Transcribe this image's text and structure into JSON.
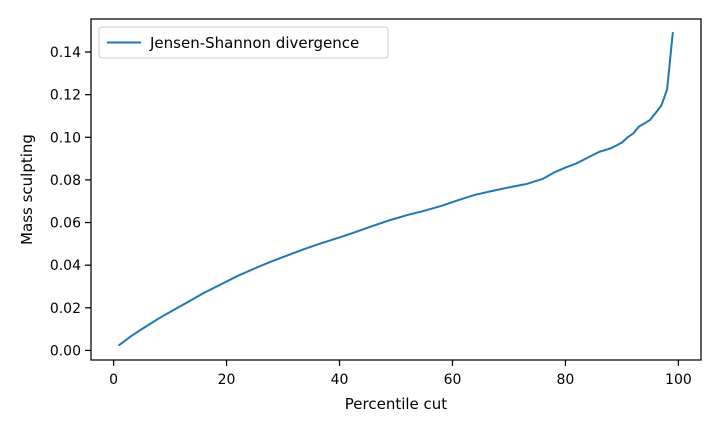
{
  "chart_data": {
    "type": "line",
    "title": "",
    "xlabel": "Percentile cut",
    "ylabel": "Mass sculpting",
    "xlim": [
      -4.0,
      104.0
    ],
    "ylim": [
      -0.0045,
      0.1555
    ],
    "xticks": [
      0,
      20,
      40,
      60,
      80,
      100
    ],
    "xtick_labels": [
      "0",
      "20",
      "40",
      "60",
      "80",
      "100"
    ],
    "yticks": [
      0.0,
      0.02,
      0.04,
      0.06,
      0.08,
      0.1,
      0.12,
      0.14
    ],
    "ytick_labels": [
      "0.00",
      "0.02",
      "0.04",
      "0.06",
      "0.08",
      "0.10",
      "0.12",
      "0.14"
    ],
    "grid": false,
    "legend_position": "upper-left",
    "series": [
      {
        "name": "Jensen-Shannon divergence",
        "color": "#1f77b4",
        "x": [
          1,
          3,
          5,
          8,
          10,
          13,
          16,
          19,
          22,
          25,
          28,
          31,
          34,
          37,
          40,
          43,
          46,
          49,
          52,
          55,
          58,
          61,
          64,
          67,
          70,
          73,
          76,
          78,
          80,
          82,
          84,
          86,
          88,
          90,
          91,
          92,
          93,
          94,
          95,
          96,
          97,
          98,
          99
        ],
        "y": [
          0.0025,
          0.0065,
          0.01,
          0.015,
          0.018,
          0.0225,
          0.027,
          0.031,
          0.035,
          0.0385,
          0.0418,
          0.0448,
          0.0478,
          0.0505,
          0.053,
          0.0557,
          0.0585,
          0.0612,
          0.0635,
          0.0655,
          0.0678,
          0.0705,
          0.073,
          0.0748,
          0.0765,
          0.078,
          0.0805,
          0.0835,
          0.0858,
          0.0878,
          0.0905,
          0.0932,
          0.0948,
          0.0975,
          0.1,
          0.1018,
          0.105,
          0.1065,
          0.1082,
          0.1115,
          0.115,
          0.1225,
          0.149
        ]
      }
    ]
  }
}
